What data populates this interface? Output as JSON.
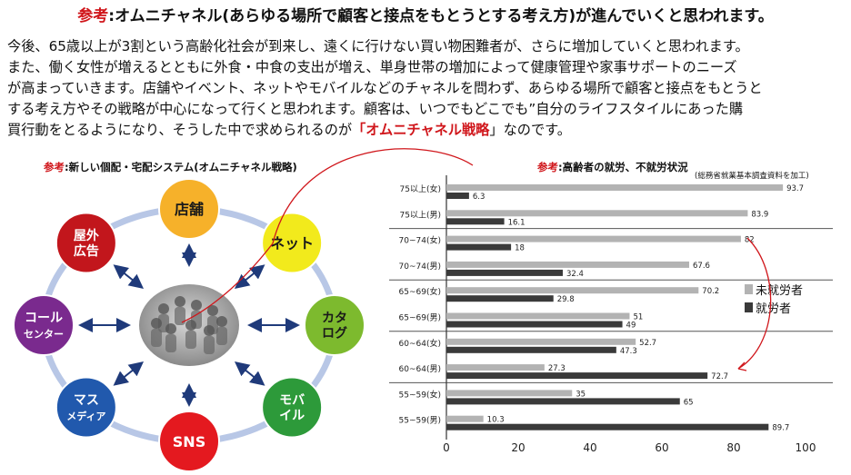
{
  "heading": {
    "ref_label": "参考",
    "text": ":オムニチャネル(あらゆる場所で顧客と接点をもとうとする考え方)が進んでいくと思われます。"
  },
  "body": {
    "lines": [
      "今後、65歳以上が3割という高齢化社会が到来し、遠くに行けない買い物困難者が、さらに増加していくと思われます。",
      "また、働く女性が増えるとともに外食・中食の支出が増え、単身世帯の増加によって健康管理や家事サポートのニーズ",
      "が高まっていきます。店舗やイベント、ネットやモバイルなどのチャネルを問わず、あらゆる場所で顧客と接点をもとうと",
      "する考え方やその戦略が中心になって行くと思われます。顧客は、いつでもどこでも”自分のライフスタイルにあった購"
    ],
    "last_before": "買行動をとるようになり、そうした中で求められるのが",
    "last_bracket_open": "「",
    "highlight": "オムニチャネル戦略",
    "last_bracket_close": "」",
    "last_after": "なのです。"
  },
  "diagram": {
    "caption_ref": "参考",
    "caption_text": ":新しい個配・宅配システム(オムニチャネル戦略)",
    "nodes": [
      {
        "id": "store",
        "lines": [
          "店舗"
        ],
        "color": "#f6b12a",
        "text_color": "#1a1a1a"
      },
      {
        "id": "net",
        "lines": [
          "ネット"
        ],
        "color": "#f2ea1c",
        "text_color": "#1a1a1a"
      },
      {
        "id": "catalog",
        "lines": [
          "カタ",
          "ログ"
        ],
        "color": "#7dba2e",
        "text_color": "#1a1a1a"
      },
      {
        "id": "mobile",
        "lines": [
          "モバ",
          "イル"
        ],
        "color": "#2d9a3a",
        "text_color": "#ffffff"
      },
      {
        "id": "sns",
        "lines": [
          "SNS"
        ],
        "color": "#e4191f",
        "text_color": "#ffffff"
      },
      {
        "id": "mass",
        "lines": [
          "マス",
          "メディア"
        ],
        "color": "#2159ad",
        "text_color": "#ffffff"
      },
      {
        "id": "call",
        "lines": [
          "コール",
          "センター"
        ],
        "color": "#7a2a8e",
        "text_color": "#ffffff"
      },
      {
        "id": "outdoor",
        "lines": [
          "屋外",
          "広告"
        ],
        "color": "#c2161c",
        "text_color": "#ffffff"
      }
    ],
    "ring_color": "#b8c7e6",
    "arrow_color": "#1f3a7a"
  },
  "chart_caption": {
    "ref": "参考",
    "text": ":高齢者の就労、不就労状況"
  },
  "chart_note": "(総務省就業基本調査資料を加工)",
  "chart_data": {
    "type": "bar",
    "orientation": "horizontal",
    "categories": [
      "75以上(女)",
      "75以上(男)",
      "70~74(女)",
      "70~74(男)",
      "65~69(女)",
      "65~69(男)",
      "60~64(女)",
      "60~64(男)",
      "55~59(女)",
      "55~59(男)"
    ],
    "series": [
      {
        "name": "未就労者",
        "color": "#b3b3b3",
        "values": [
          93.7,
          83.9,
          82,
          67.6,
          70.2,
          51,
          52.7,
          27.3,
          35,
          10.3
        ]
      },
      {
        "name": "就労者",
        "color": "#3a3a3a",
        "values": [
          6.3,
          16.1,
          18,
          32.4,
          29.8,
          49,
          47.3,
          72.7,
          65,
          89.7
        ]
      }
    ],
    "value_labels": [
      [
        "93.7",
        "83.9",
        "82",
        "67.6",
        "70.2",
        "51",
        "52.7",
        "27.3",
        "35",
        "10.3"
      ],
      [
        "6.3",
        "16.1",
        "18",
        "32.4",
        "29.8",
        "49",
        "47.3",
        "72.7",
        "65",
        "89.7"
      ]
    ],
    "xlim": [
      0,
      100
    ],
    "xticks": [
      "0",
      "20",
      "40",
      "60",
      "80",
      "100"
    ],
    "legend_position": "right"
  }
}
